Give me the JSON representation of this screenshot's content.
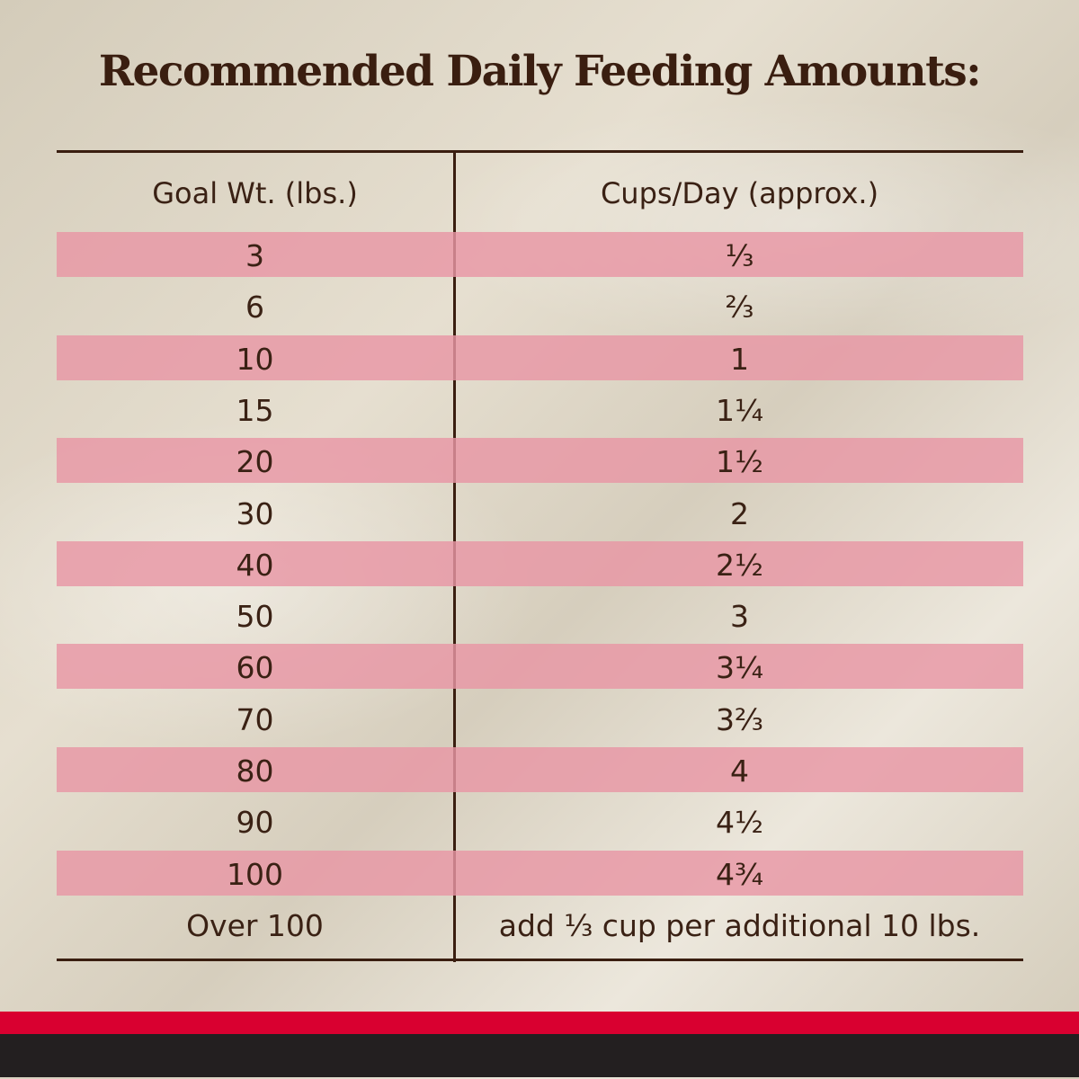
{
  "title": "Recommended Daily Feeding Amounts:",
  "table": {
    "headers": [
      "Goal Wt. (lbs.)",
      "Cups/Day (approx.)"
    ],
    "rows": [
      {
        "weight": "3",
        "cups": "⅓"
      },
      {
        "weight": "6",
        "cups": "⅔"
      },
      {
        "weight": "10",
        "cups": "1"
      },
      {
        "weight": "15",
        "cups": "1¼"
      },
      {
        "weight": "20",
        "cups": "1½"
      },
      {
        "weight": "30",
        "cups": "2"
      },
      {
        "weight": "40",
        "cups": "2½"
      },
      {
        "weight": "50",
        "cups": "3"
      },
      {
        "weight": "60",
        "cups": "3¼"
      },
      {
        "weight": "70",
        "cups": "3⅔"
      },
      {
        "weight": "80",
        "cups": "4"
      },
      {
        "weight": "90",
        "cups": "4½"
      },
      {
        "weight": "100",
        "cups": "4¾"
      },
      {
        "weight": "Over 100",
        "cups": "add ⅓ cup per additional 10 lbs."
      }
    ]
  },
  "colors": {
    "text": "#3a1e10",
    "stripe": "#e896a5",
    "band_red": "#d90030",
    "band_black": "#231f20"
  }
}
